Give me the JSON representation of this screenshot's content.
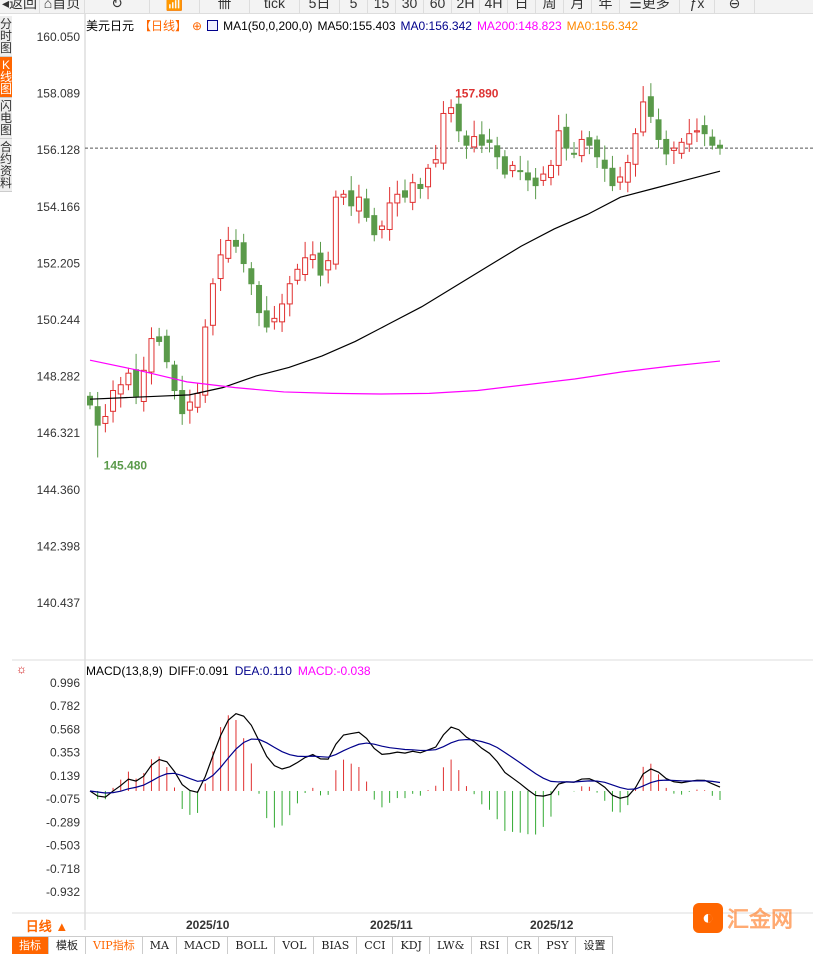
{
  "toolbar": [
    "◂返回",
    "⌂首页",
    "↻",
    "📶",
    "卌",
    "tick",
    "5日",
    "5",
    "15",
    "30",
    "60",
    "2H",
    "4H",
    "日",
    "周",
    "月",
    "年",
    "☰更多",
    "ƒx",
    "⊖"
  ],
  "side": [
    "分时图",
    "K线图",
    "闪电图",
    "合约资料"
  ],
  "legend": {
    "symbol": "美元日元",
    "period": "【日线】",
    "ma_name": "MA1(50,0,200,0)",
    "ma50": "MA50:155.403",
    "ma0a": "MA0:156.342",
    "ma200": "MA200:148.823",
    "ma0b": "MA0:156.342"
  },
  "macd_legend": {
    "name": "MACD(13,8,9)",
    "diff": "DIFF:0.091",
    "dea": "DEA:0.110",
    "macd": "MACD:-0.038"
  },
  "colors": {
    "up": "#e03030",
    "down": "#5a9a4a",
    "ma50": "#000000",
    "ma200": "#ff00ff",
    "dif": "#000000",
    "dea": "#00008b",
    "accent": "#ff6600"
  },
  "price_axis": [
    "160.050",
    "158.089",
    "156.128",
    "154.166",
    "152.205",
    "150.244",
    "148.282",
    "146.321",
    "144.360",
    "142.398",
    "140.437"
  ],
  "macd_axis": [
    "0.996",
    "0.782",
    "0.568",
    "0.353",
    "0.139",
    "-0.075",
    "-0.289",
    "-0.503",
    "-0.718",
    "-0.932"
  ],
  "x_labels": [
    "2025/10",
    "2025/11",
    "2025/12"
  ],
  "high_label": "157.890",
  "low_label": "145.480",
  "period_button": "日线 ▲",
  "bottom_tabs": [
    "指标",
    "模板",
    "VIP指标",
    "MA",
    "MACD",
    "BOLL",
    "VOL",
    "BIAS",
    "CCI",
    "KDJ",
    "LW&",
    "RSI",
    "CR",
    "PSY",
    "设置"
  ],
  "logo": "汇金网",
  "chart_data": {
    "type": "candlestick",
    "closes": [
      147.3,
      146.6,
      146.9,
      147.8,
      148.0,
      148.4,
      147.6,
      148.5,
      149.6,
      149.5,
      148.8,
      147.8,
      147.0,
      147.4,
      147.7,
      150.0,
      151.5,
      152.5,
      153.0,
      152.8,
      152.2,
      151.5,
      150.5,
      150.0,
      150.3,
      150.8,
      151.5,
      152.0,
      152.4,
      152.5,
      151.8,
      152.3,
      154.5,
      154.6,
      154.2,
      154.5,
      153.8,
      153.2,
      153.5,
      154.3,
      154.6,
      154.5,
      155.0,
      154.8,
      155.5,
      155.8,
      157.4,
      157.6,
      156.8,
      156.3,
      156.6,
      156.3,
      156.4,
      155.9,
      155.3,
      155.6,
      155.4,
      155.1,
      154.9,
      155.3,
      155.6,
      156.8,
      156.2,
      156.0,
      156.5,
      156.3,
      155.9,
      155.5,
      154.9,
      155.2,
      155.7,
      156.7,
      157.8,
      157.3,
      156.5,
      156.0,
      156.2,
      156.4,
      156.7,
      156.8,
      156.7,
      156.3,
      156.2
    ],
    "high": 157.89,
    "low": 145.48,
    "ma50": [
      147.5,
      147.55,
      147.6,
      147.65,
      147.9,
      148.3,
      148.6,
      149.0,
      149.5,
      150.1,
      150.7,
      151.4,
      152.1,
      152.8,
      153.4,
      153.9,
      154.5,
      154.8,
      155.1,
      155.4
    ],
    "ma200": [
      148.85,
      148.5,
      148.1,
      147.9,
      147.75,
      147.7,
      147.68,
      147.7,
      147.8,
      148.0,
      148.2,
      148.45,
      148.65,
      148.82
    ],
    "ylim": [
      140.437,
      160.05
    ],
    "macd_ylim": [
      -0.932,
      0.996
    ]
  }
}
